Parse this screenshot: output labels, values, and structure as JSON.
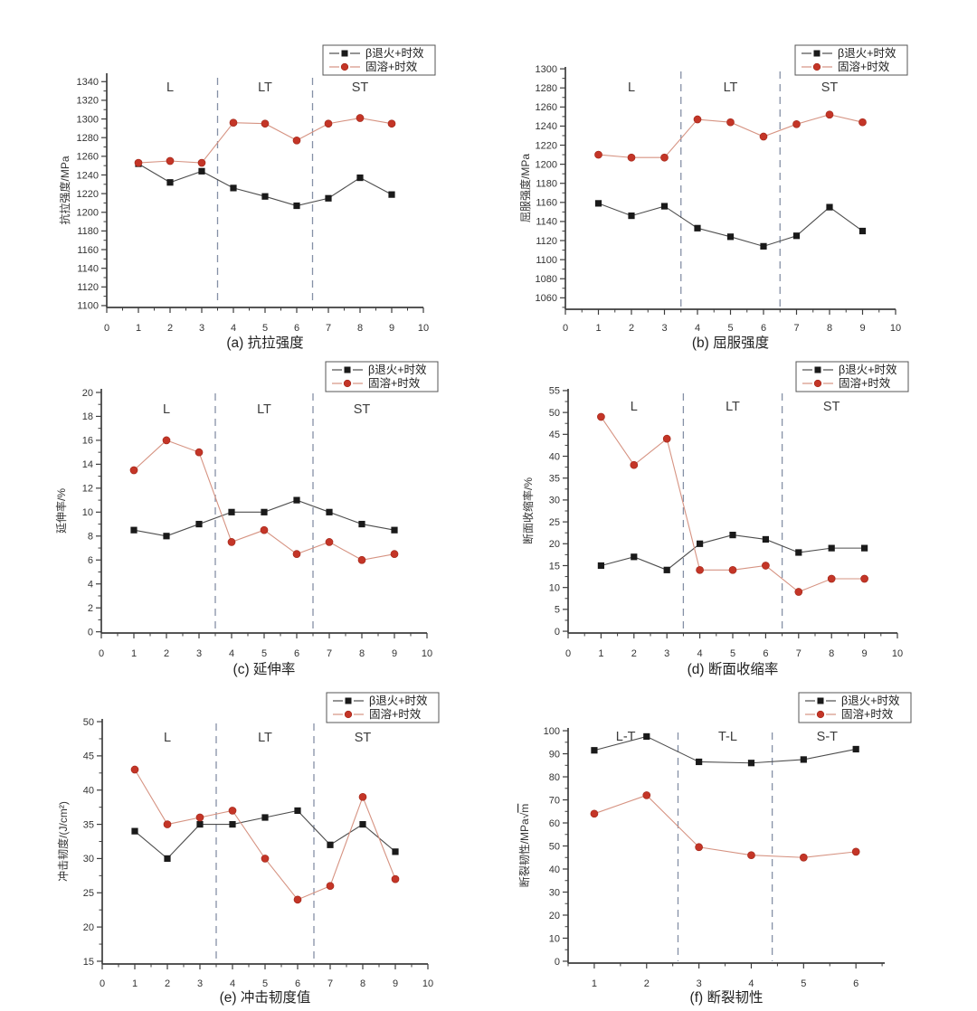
{
  "figure": {
    "description": "Six-panel line chart figure comparing two heat-treatment conditions across specimen orientations",
    "legend": {
      "entries": [
        {
          "label": "β退火+时效",
          "marker": "square",
          "marker_color": "#1a1a1a",
          "line_color": "#4d4d4d"
        },
        {
          "label": "固溶+时效",
          "marker": "circle",
          "marker_color": "#c43527",
          "line_color": "#d69382"
        }
      ],
      "position": "top-right"
    },
    "colors": {
      "axis": "#3d3d3d",
      "tick_text": "#333333",
      "caption_text": "#222222",
      "region_text": "#3c3c3c",
      "divider": "#8590a6",
      "legend_border": "#555555",
      "background": "#ffffff",
      "black_series_marker": "#1a1a1a",
      "black_series_line": "#4d4d4d",
      "red_series_marker": "#c43527",
      "red_series_line": "#d69382"
    }
  },
  "chart_data": [
    {
      "id": "a",
      "type": "line",
      "caption": "(a) 抗拉强度",
      "ylabel": "抗拉强度/MPa",
      "x": [
        1,
        2,
        3,
        4,
        5,
        6,
        7,
        8,
        9
      ],
      "series": [
        {
          "name": "β退火+时效",
          "values": [
            1252,
            1232,
            1244,
            1226,
            1217,
            1207,
            1215,
            1237,
            1219
          ]
        },
        {
          "name": "固溶+时效",
          "values": [
            1253,
            1255,
            1253,
            1296,
            1295,
            1277,
            1295,
            1301,
            1295
          ]
        }
      ],
      "xlim": [
        0,
        10
      ],
      "xticks": [
        0,
        1,
        2,
        3,
        4,
        5,
        6,
        7,
        8,
        9,
        10
      ],
      "ylim": [
        1098,
        1349
      ],
      "yticks": {
        "min": 1100,
        "max": 1340,
        "step": 20
      },
      "regions": [
        {
          "label": "L",
          "x": 2
        },
        {
          "label": "LT",
          "x": 5
        },
        {
          "label": "ST",
          "x": 8
        }
      ],
      "dividers": [
        3.5,
        6.5
      ],
      "grid": false
    },
    {
      "id": "b",
      "type": "line",
      "caption": "(b) 屈服强度",
      "ylabel": "屈服强度/MPa",
      "x": [
        1,
        2,
        3,
        4,
        5,
        6,
        7,
        8,
        9
      ],
      "series": [
        {
          "name": "β退火+时效",
          "values": [
            1159,
            1146,
            1156,
            1133,
            1124,
            1114,
            1125,
            1155,
            1130
          ]
        },
        {
          "name": "固溶+时效",
          "values": [
            1210,
            1207,
            1207,
            1247,
            1244,
            1229,
            1242,
            1252,
            1244
          ]
        }
      ],
      "xlim": [
        0,
        10
      ],
      "xticks": [
        0,
        1,
        2,
        3,
        4,
        5,
        6,
        7,
        8,
        9,
        10
      ],
      "ylim": [
        1048,
        1302
      ],
      "yticks": {
        "min": 1060,
        "max": 1300,
        "step": 20
      },
      "regions": [
        {
          "label": "L",
          "x": 2
        },
        {
          "label": "LT",
          "x": 5
        },
        {
          "label": "ST",
          "x": 8
        }
      ],
      "dividers": [
        3.5,
        6.5
      ],
      "grid": false
    },
    {
      "id": "c",
      "type": "line",
      "caption": "(c) 延伸率",
      "ylabel": "延伸率/%",
      "x": [
        1,
        2,
        3,
        4,
        5,
        6,
        7,
        8,
        9
      ],
      "series": [
        {
          "name": "β退火+时效",
          "values": [
            8.5,
            8,
            9,
            10,
            10,
            11,
            10,
            9,
            8.5
          ]
        },
        {
          "name": "固溶+时效",
          "values": [
            13.5,
            16,
            15,
            7.5,
            8.5,
            6.5,
            7.5,
            6,
            6.5
          ]
        }
      ],
      "xlim": [
        0,
        10
      ],
      "xticks": [
        0,
        1,
        2,
        3,
        4,
        5,
        6,
        7,
        8,
        9,
        10
      ],
      "ylim": [
        -0.1,
        20.3
      ],
      "yticks": {
        "min": 0,
        "max": 20,
        "step": 2
      },
      "regions": [
        {
          "label": "L",
          "x": 2
        },
        {
          "label": "LT",
          "x": 5
        },
        {
          "label": "ST",
          "x": 8
        }
      ],
      "dividers": [
        3.5,
        6.5
      ],
      "grid": false
    },
    {
      "id": "d",
      "type": "line",
      "caption": "(d) 断面收缩率",
      "ylabel": "断面收缩率/%",
      "x": [
        1,
        2,
        3,
        4,
        5,
        6,
        7,
        8,
        9
      ],
      "series": [
        {
          "name": "β退火+时效",
          "values": [
            15,
            17,
            14,
            20,
            22,
            21,
            18,
            19,
            19
          ]
        },
        {
          "name": "固溶+时效",
          "values": [
            49,
            38,
            44,
            14,
            14,
            15,
            9,
            12,
            12
          ]
        }
      ],
      "xlim": [
        0,
        10
      ],
      "xticks": [
        0,
        1,
        2,
        3,
        4,
        5,
        6,
        7,
        8,
        9,
        10
      ],
      "ylim": [
        -0.4,
        55.4
      ],
      "yticks": {
        "min": 0,
        "max": 55,
        "step": 5
      },
      "regions": [
        {
          "label": "L",
          "x": 2
        },
        {
          "label": "LT",
          "x": 5
        },
        {
          "label": "ST",
          "x": 8
        }
      ],
      "dividers": [
        3.5,
        6.5
      ],
      "grid": false
    },
    {
      "id": "e",
      "type": "line",
      "caption": "(e) 冲击韧度值",
      "ylabel": "冲击韧度/(J/cm²)",
      "x": [
        1,
        2,
        3,
        4,
        5,
        6,
        7,
        8,
        9
      ],
      "series": [
        {
          "name": "β退火+时效",
          "values": [
            34,
            30,
            35,
            35,
            36,
            37,
            32,
            35,
            31
          ]
        },
        {
          "name": "固溶+时效",
          "values": [
            43,
            35,
            36,
            37,
            30,
            24,
            26,
            39,
            27
          ]
        }
      ],
      "xlim": [
        0,
        10
      ],
      "xticks": [
        0,
        1,
        2,
        3,
        4,
        5,
        6,
        7,
        8,
        9,
        10
      ],
      "ylim": [
        14.6,
        50.4
      ],
      "yticks": {
        "min": 15,
        "max": 50,
        "step": 5
      },
      "regions": [
        {
          "label": "L",
          "x": 2
        },
        {
          "label": "LT",
          "x": 5
        },
        {
          "label": "ST",
          "x": 8
        }
      ],
      "dividers": [
        3.5,
        6.5
      ],
      "grid": false
    },
    {
      "id": "f",
      "type": "line",
      "caption": "(f) 断裂韧性",
      "ylabel": "断裂韧性/MPa√m",
      "x": [
        1,
        2,
        3,
        4,
        5,
        6
      ],
      "series": [
        {
          "name": "β退火+时效",
          "values": [
            91.5,
            97.5,
            86.5,
            86,
            87.5,
            92
          ]
        },
        {
          "name": "固溶+时效",
          "values": [
            64,
            72,
            49.5,
            46,
            45,
            47.5
          ]
        }
      ],
      "xlim": [
        0.5,
        6.55
      ],
      "xticks": [
        1,
        2,
        3,
        4,
        5,
        6
      ],
      "ylim": [
        -0.8,
        101.2
      ],
      "yticks": {
        "min": 0,
        "max": 100,
        "step": 10
      },
      "regions": [
        {
          "label": "L-T",
          "x": 1.6
        },
        {
          "label": "T-L",
          "x": 3.55
        },
        {
          "label": "S-T",
          "x": 5.45
        }
      ],
      "dividers": [
        2.6,
        4.4
      ],
      "grid": false
    }
  ]
}
